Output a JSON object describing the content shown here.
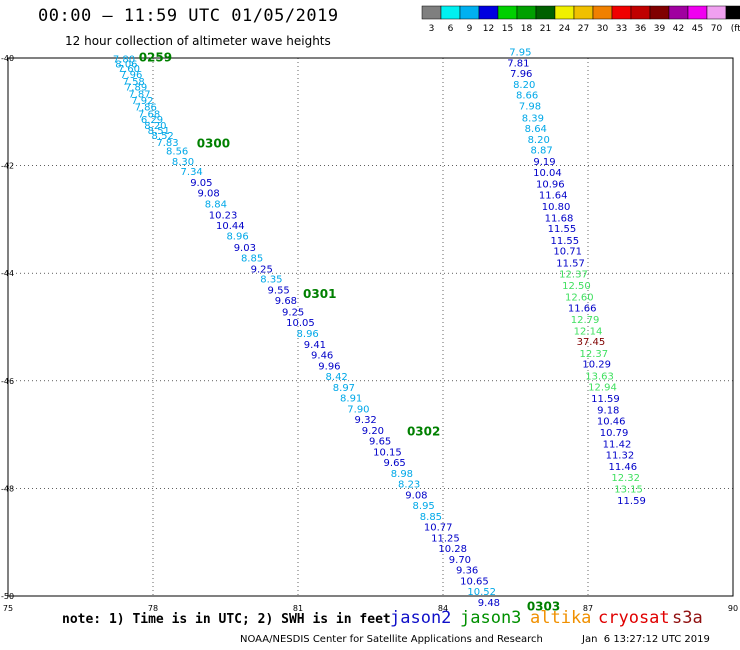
{
  "header": {
    "title": "00:00 – 11:59 UTC 01/05/2019",
    "subtitle": "12 hour collection of altimeter wave heights"
  },
  "colorbar": {
    "colors": [
      "#7f7f7f",
      "#00f0f0",
      "#00b0f0",
      "#0000e0",
      "#00d000",
      "#00a000",
      "#006000",
      "#f0f000",
      "#f0c000",
      "#f08000",
      "#f00000",
      "#c00000",
      "#800000",
      "#a000a0",
      "#f000f0",
      "#f0a0f0",
      "#000000"
    ],
    "labels": [
      "3",
      "6",
      "9",
      "12",
      "15",
      "18",
      "21",
      "24",
      "27",
      "30",
      "33",
      "36",
      "39",
      "42",
      "45",
      "70",
      "(ft)"
    ]
  },
  "footer": {
    "note": "note: 1) Time is in UTC; 2) SWH is in feet",
    "satellites": [
      {
        "name": "jason2",
        "color": "#1010c8"
      },
      {
        "name": "jason3",
        "color": "#009000"
      },
      {
        "name": "altika",
        "color": "#f09000"
      },
      {
        "name": "cryosat",
        "color": "#e00000"
      },
      {
        "name": "s3a",
        "color": "#901010"
      }
    ],
    "credit": "NOAA/NESDIS Center for Satellite Applications and Research",
    "stamp": "Jan  6 13:27:12 UTC 2019"
  },
  "chart_data": {
    "type": "scatter",
    "title": "00:00 – 11:59 UTC 01/05/2019",
    "xlim": [
      75,
      90
    ],
    "ylim": [
      -50,
      -40
    ],
    "xticks": [
      "75",
      "78",
      "81",
      "84",
      "87",
      "90"
    ],
    "yticks": [
      "-40",
      "-42",
      "-44",
      "-46",
      "-48",
      "-50"
    ],
    "grid": true,
    "labels": [
      {
        "x": 77.4,
        "y": -40.03,
        "t": "7.80",
        "c": "#00a8e8"
      },
      {
        "x": 77.45,
        "y": -40.12,
        "t": "8.06",
        "c": "#00a8e8"
      },
      {
        "x": 77.5,
        "y": -40.2,
        "t": "7.60",
        "c": "#00a8e8"
      },
      {
        "x": 77.55,
        "y": -40.32,
        "t": "7.96",
        "c": "#00a8e8"
      },
      {
        "x": 77.6,
        "y": -40.45,
        "t": "7.58",
        "c": "#00a8e8"
      },
      {
        "x": 77.65,
        "y": -40.55,
        "t": "7.89",
        "c": "#00a8e8"
      },
      {
        "x": 77.72,
        "y": -40.68,
        "t": "7.87",
        "c": "#00a8e8"
      },
      {
        "x": 77.78,
        "y": -40.8,
        "t": "7.92",
        "c": "#00a8e8"
      },
      {
        "x": 77.85,
        "y": -40.92,
        "t": "7.86",
        "c": "#00a8e8"
      },
      {
        "x": 77.92,
        "y": -41.05,
        "t": "7.68",
        "c": "#00a8e8"
      },
      {
        "x": 77.98,
        "y": -41.15,
        "t": "6.29",
        "c": "#00a8e8"
      },
      {
        "x": 78.05,
        "y": -41.26,
        "t": "8.20",
        "c": "#00a8e8"
      },
      {
        "x": 78.12,
        "y": -41.36,
        "t": "8.51",
        "c": "#00a8e8"
      },
      {
        "x": 78.2,
        "y": -41.45,
        "t": "8.52",
        "c": "#00a8e8"
      },
      {
        "x": 78.3,
        "y": -41.58,
        "t": "7.83",
        "c": "#00a8e8"
      },
      {
        "x": 78.5,
        "y": -41.74,
        "t": "8.56",
        "c": "#00a8e8"
      },
      {
        "x": 78.62,
        "y": -41.93,
        "t": "8.30",
        "c": "#00a8e8"
      },
      {
        "x": 78.8,
        "y": -42.12,
        "t": "7.34",
        "c": "#00a8e8"
      },
      {
        "x": 79.0,
        "y": -42.32,
        "t": "9.05",
        "c": "#0000c8"
      },
      {
        "x": 79.15,
        "y": -42.52,
        "t": "9.08",
        "c": "#0000c8"
      },
      {
        "x": 79.3,
        "y": -42.72,
        "t": "8.84",
        "c": "#00a8e8"
      },
      {
        "x": 79.45,
        "y": -42.93,
        "t": "10.23",
        "c": "#0000c8"
      },
      {
        "x": 79.6,
        "y": -43.12,
        "t": "10.44",
        "c": "#0000c8"
      },
      {
        "x": 79.75,
        "y": -43.32,
        "t": "8.96",
        "c": "#00a8e8"
      },
      {
        "x": 79.9,
        "y": -43.53,
        "t": "9.03",
        "c": "#0000c8"
      },
      {
        "x": 80.05,
        "y": -43.73,
        "t": "8.85",
        "c": "#00a8e8"
      },
      {
        "x": 80.25,
        "y": -43.93,
        "t": "9.25",
        "c": "#0000c8"
      },
      {
        "x": 80.45,
        "y": -44.12,
        "t": "8.35",
        "c": "#00a8e8"
      },
      {
        "x": 80.6,
        "y": -44.32,
        "t": "9.55",
        "c": "#0000c8"
      },
      {
        "x": 80.75,
        "y": -44.52,
        "t": "9.68",
        "c": "#0000c8"
      },
      {
        "x": 80.9,
        "y": -44.73,
        "t": "9.25",
        "c": "#0000c8"
      },
      {
        "x": 81.05,
        "y": -44.93,
        "t": "10.05",
        "c": "#0000c8"
      },
      {
        "x": 81.2,
        "y": -45.13,
        "t": "8.96",
        "c": "#00a8e8"
      },
      {
        "x": 81.35,
        "y": -45.33,
        "t": "9.41",
        "c": "#0000c8"
      },
      {
        "x": 81.5,
        "y": -45.53,
        "t": "9.46",
        "c": "#0000c8"
      },
      {
        "x": 81.65,
        "y": -45.73,
        "t": "9.96",
        "c": "#0000c8"
      },
      {
        "x": 81.8,
        "y": -45.93,
        "t": "8.42",
        "c": "#00a8e8"
      },
      {
        "x": 81.95,
        "y": -46.13,
        "t": "8.97",
        "c": "#00a8e8"
      },
      {
        "x": 82.1,
        "y": -46.33,
        "t": "8.91",
        "c": "#00a8e8"
      },
      {
        "x": 82.25,
        "y": -46.53,
        "t": "7.90",
        "c": "#00a8e8"
      },
      {
        "x": 82.4,
        "y": -46.73,
        "t": "9.32",
        "c": "#0000c8"
      },
      {
        "x": 82.55,
        "y": -46.93,
        "t": "9.20",
        "c": "#0000c8"
      },
      {
        "x": 82.7,
        "y": -47.13,
        "t": "9.65",
        "c": "#0000c8"
      },
      {
        "x": 82.85,
        "y": -47.33,
        "t": "10.15",
        "c": "#0000c8"
      },
      {
        "x": 83.0,
        "y": -47.53,
        "t": "9.65",
        "c": "#0000c8"
      },
      {
        "x": 83.15,
        "y": -47.73,
        "t": "8.98",
        "c": "#00a8e8"
      },
      {
        "x": 83.3,
        "y": -47.93,
        "t": "8.23",
        "c": "#00a8e8"
      },
      {
        "x": 83.45,
        "y": -48.13,
        "t": "9.08",
        "c": "#0000c8"
      },
      {
        "x": 83.6,
        "y": -48.33,
        "t": "8.95",
        "c": "#00a8e8"
      },
      {
        "x": 83.75,
        "y": -48.53,
        "t": "8.85",
        "c": "#00a8e8"
      },
      {
        "x": 83.9,
        "y": -48.73,
        "t": "10.77",
        "c": "#0000c8"
      },
      {
        "x": 84.05,
        "y": -48.93,
        "t": "11.25",
        "c": "#0000c8"
      },
      {
        "x": 84.2,
        "y": -49.13,
        "t": "10.28",
        "c": "#0000c8"
      },
      {
        "x": 84.35,
        "y": -49.33,
        "t": "9.70",
        "c": "#0000c8"
      },
      {
        "x": 84.5,
        "y": -49.53,
        "t": "9.36",
        "c": "#0000c8"
      },
      {
        "x": 84.65,
        "y": -49.73,
        "t": "10.65",
        "c": "#0000c8"
      },
      {
        "x": 84.8,
        "y": -49.93,
        "t": "10.52",
        "c": "#00a8e8"
      },
      {
        "x": 84.95,
        "y": -50.13,
        "t": "9.48",
        "c": "#0000c8"
      },
      {
        "x": 85.6,
        "y": -39.9,
        "t": "7.95",
        "c": "#00a8e8"
      },
      {
        "x": 85.56,
        "y": -40.1,
        "t": "7.81",
        "c": "#0000c8"
      },
      {
        "x": 85.62,
        "y": -40.3,
        "t": "7.96",
        "c": "#0000c8"
      },
      {
        "x": 85.68,
        "y": -40.5,
        "t": "8.20",
        "c": "#00a8e8"
      },
      {
        "x": 85.74,
        "y": -40.7,
        "t": "8.66",
        "c": "#00a8e8"
      },
      {
        "x": 85.8,
        "y": -40.9,
        "t": "7.98",
        "c": "#00a8e8"
      },
      {
        "x": 85.86,
        "y": -41.12,
        "t": "8.39",
        "c": "#00a8e8"
      },
      {
        "x": 85.92,
        "y": -41.32,
        "t": "8.64",
        "c": "#00a8e8"
      },
      {
        "x": 85.98,
        "y": -41.52,
        "t": "8.20",
        "c": "#00a8e8"
      },
      {
        "x": 86.04,
        "y": -41.72,
        "t": "8.87",
        "c": "#00a8e8"
      },
      {
        "x": 86.1,
        "y": -41.93,
        "t": "9.19",
        "c": "#0000c8"
      },
      {
        "x": 86.16,
        "y": -42.14,
        "t": "10.04",
        "c": "#0000c8"
      },
      {
        "x": 86.22,
        "y": -42.35,
        "t": "10.96",
        "c": "#0000c8"
      },
      {
        "x": 86.28,
        "y": -42.56,
        "t": "11.64",
        "c": "#0000c8"
      },
      {
        "x": 86.34,
        "y": -42.77,
        "t": "10.80",
        "c": "#0000c8"
      },
      {
        "x": 86.4,
        "y": -42.98,
        "t": "11.68",
        "c": "#0000c8"
      },
      {
        "x": 86.46,
        "y": -43.18,
        "t": "11.55",
        "c": "#0000c8"
      },
      {
        "x": 86.52,
        "y": -43.4,
        "t": "11.55",
        "c": "#0000c8"
      },
      {
        "x": 86.58,
        "y": -43.6,
        "t": "10.71",
        "c": "#0000c8"
      },
      {
        "x": 86.64,
        "y": -43.82,
        "t": "11.57",
        "c": "#0000c8"
      },
      {
        "x": 86.7,
        "y": -44.02,
        "t": "12.37",
        "c": "#40e060"
      },
      {
        "x": 86.76,
        "y": -44.24,
        "t": "12.50",
        "c": "#40e060"
      },
      {
        "x": 86.82,
        "y": -44.45,
        "t": "12.60",
        "c": "#40e060"
      },
      {
        "x": 86.88,
        "y": -44.66,
        "t": "11.66",
        "c": "#0000c8"
      },
      {
        "x": 86.94,
        "y": -44.87,
        "t": "12.79",
        "c": "#40e060"
      },
      {
        "x": 87.0,
        "y": -45.08,
        "t": "12.14",
        "c": "#40e060"
      },
      {
        "x": 87.06,
        "y": -45.28,
        "t": "37.45",
        "c": "#800000"
      },
      {
        "x": 87.12,
        "y": -45.5,
        "t": "12.37",
        "c": "#40e060"
      },
      {
        "x": 87.18,
        "y": -45.7,
        "t": "10.29",
        "c": "#0000c8"
      },
      {
        "x": 87.24,
        "y": -45.92,
        "t": "13.63",
        "c": "#40e060"
      },
      {
        "x": 87.3,
        "y": -46.12,
        "t": "12.94",
        "c": "#40e060"
      },
      {
        "x": 87.36,
        "y": -46.34,
        "t": "11.59",
        "c": "#0000c8"
      },
      {
        "x": 87.42,
        "y": -46.55,
        "t": "9.18",
        "c": "#0000c8"
      },
      {
        "x": 87.48,
        "y": -46.76,
        "t": "10.46",
        "c": "#0000c8"
      },
      {
        "x": 87.54,
        "y": -46.97,
        "t": "10.79",
        "c": "#0000c8"
      },
      {
        "x": 87.6,
        "y": -47.18,
        "t": "11.42",
        "c": "#0000c8"
      },
      {
        "x": 87.66,
        "y": -47.39,
        "t": "11.32",
        "c": "#0000c8"
      },
      {
        "x": 87.72,
        "y": -47.6,
        "t": "11.46",
        "c": "#0000c8"
      },
      {
        "x": 87.78,
        "y": -47.81,
        "t": "12.32",
        "c": "#40e060"
      },
      {
        "x": 87.84,
        "y": -48.02,
        "t": "13.15",
        "c": "#40e060"
      },
      {
        "x": 87.9,
        "y": -48.23,
        "t": "11.59",
        "c": "#0000c8"
      }
    ],
    "tags": [
      {
        "x": 78.05,
        "y": -40.0,
        "t": "0259",
        "c": "#008000"
      },
      {
        "x": 79.25,
        "y": -41.6,
        "t": "0300",
        "c": "#008000"
      },
      {
        "x": 81.45,
        "y": -44.4,
        "t": "0301",
        "c": "#008000"
      },
      {
        "x": 83.6,
        "y": -46.95,
        "t": "0302",
        "c": "#008000"
      },
      {
        "x": 86.08,
        "y": -50.2,
        "t": "0303",
        "c": "#008000"
      }
    ]
  }
}
